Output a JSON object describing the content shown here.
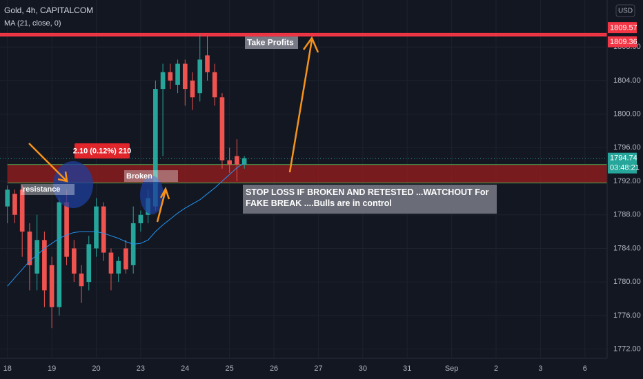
{
  "chart_data": {
    "type": "candlestick",
    "title": "Gold, 4h, CAPITALCOM",
    "indicator": "MA (21, close, 0)",
    "currency": "USD",
    "up_color": "#26a69a",
    "down_color": "#ef5350",
    "xlim": [
      -1,
      81
    ],
    "xticks": [
      {
        "value": 0,
        "label": "18"
      },
      {
        "value": 6,
        "label": "19"
      },
      {
        "value": 12,
        "label": "20"
      },
      {
        "value": 18,
        "label": "23"
      },
      {
        "value": 24,
        "label": "24"
      },
      {
        "value": 30,
        "label": "25"
      },
      {
        "value": 36,
        "label": "26"
      },
      {
        "value": 42,
        "label": "27"
      },
      {
        "value": 48,
        "label": "30"
      },
      {
        "value": 54,
        "label": "31"
      },
      {
        "value": 60,
        "label": "Sep"
      },
      {
        "value": 66,
        "label": "2"
      },
      {
        "value": 72,
        "label": "3"
      },
      {
        "value": 78,
        "label": "6"
      }
    ],
    "ylim": [
      1770.9,
      1813.6
    ],
    "yticks": [
      {
        "value": 1772,
        "label": "1772.00"
      },
      {
        "value": 1776,
        "label": "1776.00"
      },
      {
        "value": 1780,
        "label": "1780.00"
      },
      {
        "value": 1784,
        "label": "1784.00"
      },
      {
        "value": 1788,
        "label": "1788.00"
      },
      {
        "value": 1792,
        "label": "1792.00"
      },
      {
        "value": 1796,
        "label": "1796.00"
      },
      {
        "value": 1800,
        "label": "1800.00"
      },
      {
        "value": 1804,
        "label": "1804.00"
      },
      {
        "value": 1808,
        "label": "1808.00"
      }
    ],
    "open": [
      1789,
      1790.5,
      1791,
      1786,
      1781,
      1785,
      1782,
      1777,
      1789.5,
      1784,
      1781,
      1780,
      1784,
      1789,
      1783.5,
      1781,
      1784,
      1782,
      1787,
      1788,
      1789,
      1803,
      1805,
      1803.5,
      1806,
      1804,
      1802.5,
      1807,
      1805,
      1802,
      1794.5,
      1795,
      1794
    ],
    "high": [
      1791.5,
      1791,
      1791.5,
      1787,
      1788,
      1786,
      1783,
      1790,
      1791,
      1785,
      1782,
      1785.5,
      1790,
      1789.5,
      1784,
      1783,
      1785,
      1789,
      1788.5,
      1791,
      1804,
      1806,
      1806,
      1806.5,
      1806.5,
      1805,
      1809.5,
      1809.3,
      1806,
      1802.5,
      1796,
      1797,
      1795
    ],
    "low": [
      1787,
      1787,
      1783,
      1779,
      1779,
      1777,
      1774.5,
      1776,
      1782,
      1780,
      1777.5,
      1779,
      1783,
      1782.5,
      1779,
      1780,
      1781,
      1781,
      1786,
      1787,
      1788.5,
      1795,
      1803,
      1802.5,
      1801,
      1800.5,
      1801.5,
      1804,
      1801,
      1793.5,
      1793,
      1792,
      1793.5
    ],
    "close": [
      1791,
      1788,
      1786,
      1782,
      1785,
      1779,
      1777,
      1789.5,
      1783,
      1781,
      1779.5,
      1784.5,
      1789,
      1783.5,
      1781,
      1782.5,
      1781.5,
      1787,
      1788,
      1790,
      1803,
      1805,
      1804,
      1806,
      1803,
      1802,
      1806.5,
      1805,
      1802,
      1794.5,
      1794,
      1794,
      1794.74
    ],
    "ma": {
      "name": "MA (21, close, 0)",
      "color": "#2196f3",
      "values": [
        1779.5,
        1780.5,
        1781.5,
        1782.5,
        1783.2,
        1784,
        1784.6,
        1785.2,
        1785.6,
        1785.9,
        1786,
        1786,
        1786,
        1785.8,
        1785.5,
        1785.2,
        1784.8,
        1784.5,
        1784.6,
        1785,
        1786,
        1786.8,
        1787.5,
        1788.2,
        1788.8,
        1789.3,
        1789.8,
        1790.5,
        1791.2,
        1792,
        1792.8,
        1793.6,
        1794.2
      ]
    },
    "levels": [
      {
        "value": 1809.57,
        "label": "1809.57"
      },
      {
        "value": 1809.36,
        "label": "1809.36"
      }
    ],
    "last_price": {
      "value": 1794.74,
      "label": "1794.74",
      "countdown": "03:48:21"
    },
    "zone": {
      "low": 1791.8,
      "high": 1794
    },
    "annotations": {
      "take_profits": "Take Profits",
      "measure": "2.10 (0.12%) 210",
      "broken": "Broken",
      "resistance": "resistance",
      "stop_loss": "STOP LOSS IF BROKEN AND RETESTED ...WATCHOUT For FAKE BREAK ....Bulls are in control"
    }
  }
}
